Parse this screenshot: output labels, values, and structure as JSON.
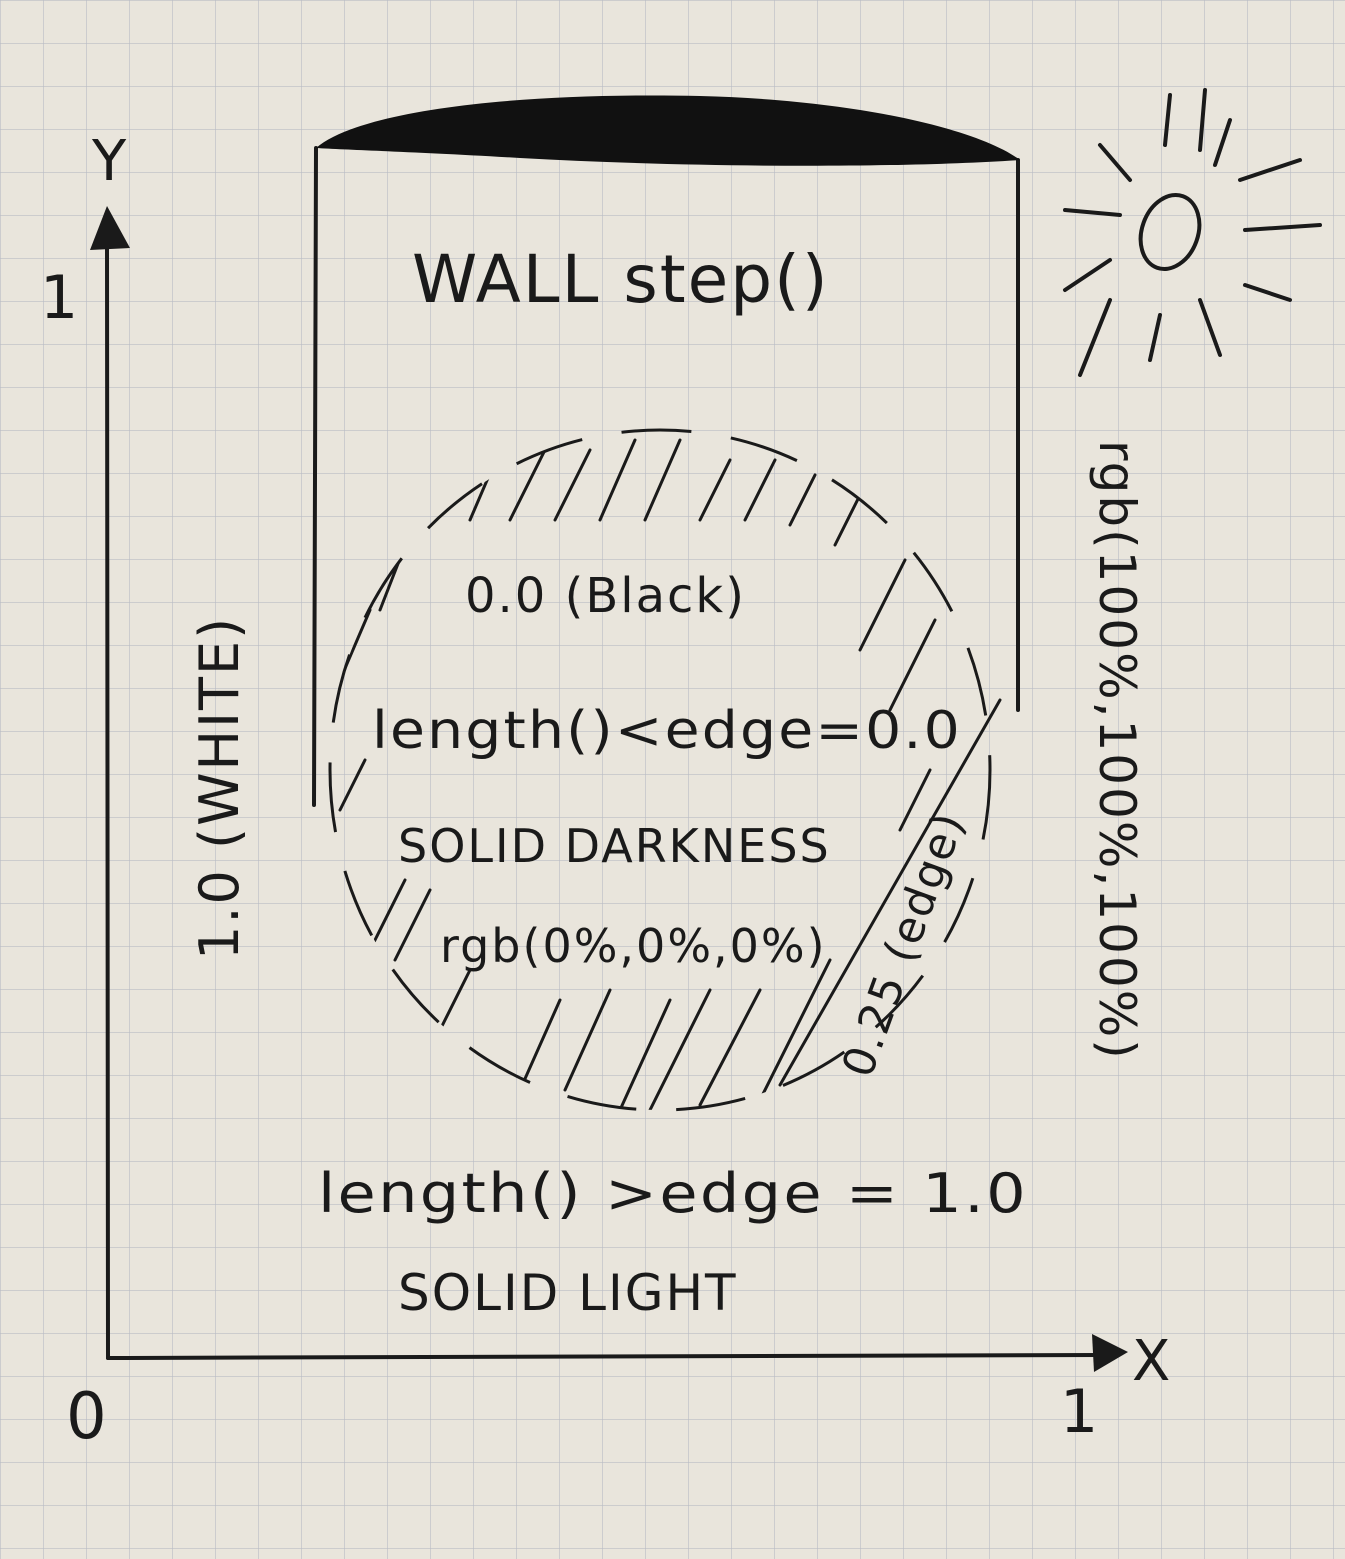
{
  "axes": {
    "y_label": "Y",
    "x_label": "X",
    "origin_label": "0",
    "y_max_tick": "1",
    "x_max_tick": "1"
  },
  "wall": {
    "title": "WALL step()"
  },
  "circle": {
    "center_value": "0.0 (Black)",
    "condition": "length()<edge=0.0",
    "description": "SOLID DARKNESS",
    "color": "rgb(0%,0%,0%)",
    "edge_note": "0.25 (edge)"
  },
  "outside": {
    "condition": "length() >edge = 1.0",
    "description": "SOLID LIGHT"
  },
  "left_note": "1.0 (WHITE)",
  "right_note": "rgb(100%,100%,100%)",
  "icons": {
    "sun": "sun-icon"
  },
  "colors": {
    "paper": "#e9e5dc",
    "grid": "#b9bcc4",
    "ink": "#1a1a1a"
  }
}
